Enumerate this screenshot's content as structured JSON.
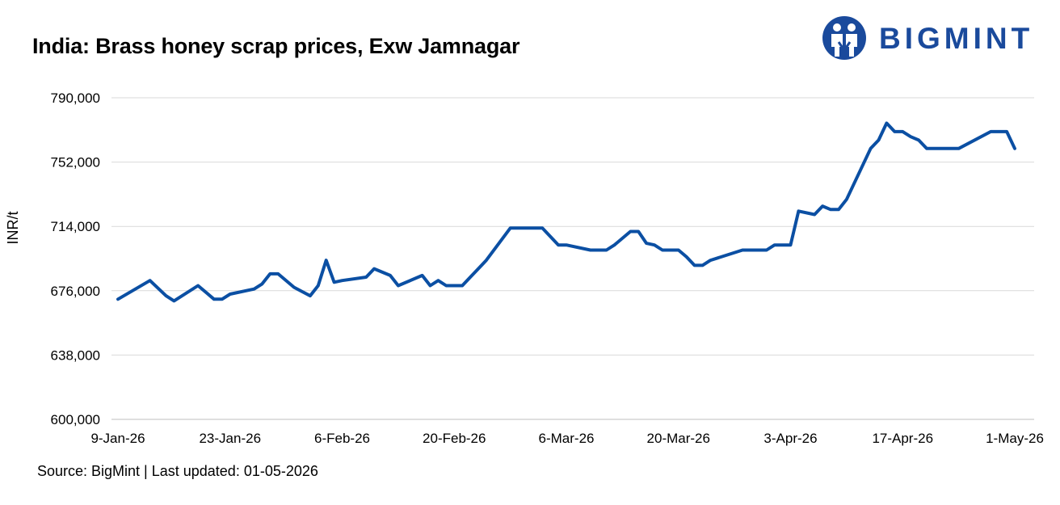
{
  "title": "India: Brass honey scrap prices, Exw Jamnagar",
  "logo": {
    "text": "BIGMINT",
    "icon": "bigmint-people-icon",
    "color": "#1a4a9c"
  },
  "source": "Source: BigMint | Last updated: 01-05-2026",
  "chart_data": {
    "type": "line",
    "title": "India: Brass honey scrap prices, Exw Jamnagar",
    "xlabel": "",
    "ylabel": "INR/t",
    "ylim": [
      600000,
      790000
    ],
    "yticks": [
      600000,
      638000,
      676000,
      714000,
      752000,
      790000
    ],
    "ytick_labels": [
      "600,000",
      "638,000",
      "676,000",
      "714,000",
      "752,000",
      "790,000"
    ],
    "xlim": [
      "2026-01-09",
      "2026-05-01"
    ],
    "xticks": [
      "2026-01-09",
      "2026-01-23",
      "2026-02-06",
      "2026-02-20",
      "2026-03-06",
      "2026-03-20",
      "2026-04-03",
      "2026-04-17",
      "2026-05-01"
    ],
    "xtick_labels": [
      "9-Jan-26",
      "23-Jan-26",
      "6-Feb-26",
      "20-Feb-26",
      "6-Mar-26",
      "20-Mar-26",
      "3-Apr-26",
      "17-Apr-26",
      "1-May-26"
    ],
    "grid": true,
    "legend": "none",
    "series_color": "#0b4fa3",
    "series": [
      {
        "x": [
          "2026-01-09",
          "2026-01-13",
          "2026-01-15",
          "2026-01-16",
          "2026-01-19",
          "2026-01-21",
          "2026-01-22",
          "2026-01-23",
          "2026-01-26",
          "2026-01-27",
          "2026-01-28",
          "2026-01-29",
          "2026-01-31",
          "2026-02-02",
          "2026-02-03",
          "2026-02-04",
          "2026-02-05",
          "2026-02-06",
          "2026-02-09",
          "2026-02-10",
          "2026-02-12",
          "2026-02-13",
          "2026-02-16",
          "2026-02-17",
          "2026-02-18",
          "2026-02-19",
          "2026-02-21",
          "2026-02-22",
          "2026-02-23",
          "2026-02-24",
          "2026-02-27",
          "2026-02-28",
          "2026-03-02",
          "2026-03-03",
          "2026-03-05",
          "2026-03-06",
          "2026-03-09",
          "2026-03-10",
          "2026-03-11",
          "2026-03-12",
          "2026-03-14",
          "2026-03-15",
          "2026-03-16",
          "2026-03-17",
          "2026-03-18",
          "2026-03-20",
          "2026-03-21",
          "2026-03-22",
          "2026-03-23",
          "2026-03-24",
          "2026-03-28",
          "2026-03-31",
          "2026-04-01",
          "2026-04-03",
          "2026-04-04",
          "2026-04-06",
          "2026-04-07",
          "2026-04-08",
          "2026-04-09",
          "2026-04-10",
          "2026-04-13",
          "2026-04-14",
          "2026-04-15",
          "2026-04-16",
          "2026-04-17",
          "2026-04-18",
          "2026-04-19",
          "2026-04-20",
          "2026-04-23",
          "2026-04-24",
          "2026-04-28",
          "2026-04-30",
          "2026-05-01"
        ],
        "values": [
          671000,
          682000,
          673000,
          670000,
          679000,
          671000,
          671000,
          674000,
          677000,
          680000,
          686000,
          686000,
          678000,
          673000,
          679000,
          694000,
          681000,
          682000,
          684000,
          689000,
          685000,
          679000,
          685000,
          679000,
          682000,
          679000,
          679000,
          684000,
          689000,
          694000,
          713000,
          713000,
          713000,
          713000,
          703000,
          703000,
          700000,
          700000,
          700000,
          703000,
          711000,
          711000,
          704000,
          703000,
          700000,
          700000,
          696000,
          691000,
          691000,
          694000,
          700000,
          700000,
          703000,
          703000,
          723000,
          721000,
          726000,
          724000,
          724000,
          730000,
          760000,
          765000,
          775000,
          770000,
          770000,
          767000,
          765000,
          760000,
          760000,
          760000,
          770000,
          770000,
          760000
        ]
      }
    ]
  }
}
